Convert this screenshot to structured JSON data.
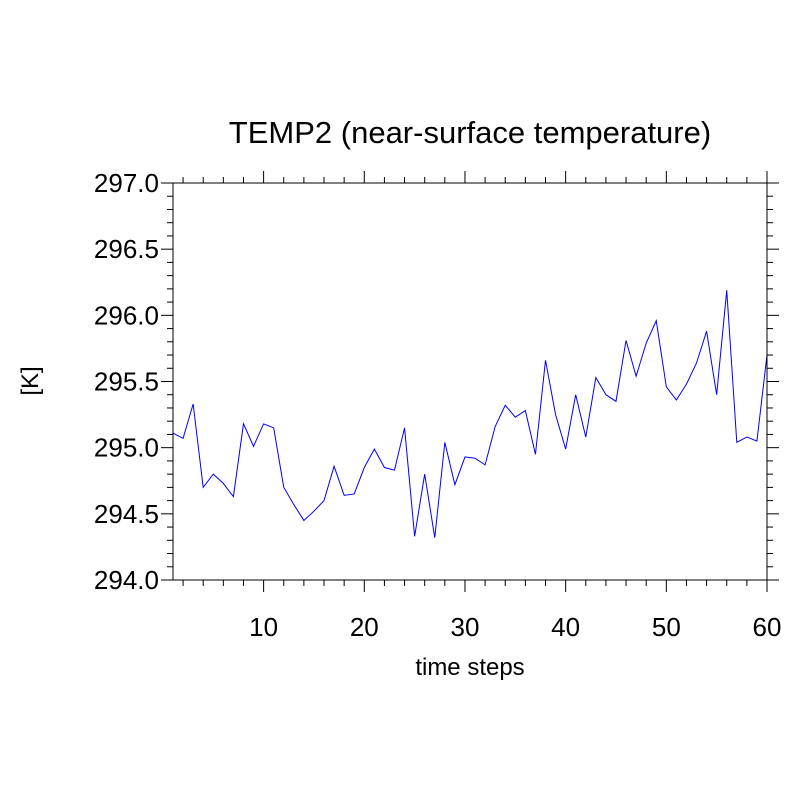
{
  "chart_data": {
    "type": "line",
    "title": "TEMP2 (near-surface temperature)",
    "xlabel": "time steps",
    "ylabel": "[K]",
    "xlim": [
      1,
      60
    ],
    "ylim": [
      294.0,
      297.0
    ],
    "x_ticks": [
      10,
      20,
      30,
      40,
      50,
      60
    ],
    "x_tick_labels": [
      "10",
      "20",
      "30",
      "40",
      "50",
      "60"
    ],
    "y_ticks": [
      294.0,
      294.5,
      295.0,
      295.5,
      296.0,
      296.5,
      297.0
    ],
    "y_tick_labels": [
      "294.0",
      "294.5",
      "295.0",
      "295.5",
      "296.0",
      "296.5",
      "297.0"
    ],
    "grid": false,
    "line_color": "#0000ff",
    "series": [
      {
        "x": [
          1,
          2,
          3,
          4,
          5,
          6,
          7,
          8,
          9,
          10,
          11,
          12,
          13,
          14,
          15,
          16,
          17,
          18,
          19,
          20,
          21,
          22,
          23,
          24,
          25,
          26,
          27,
          28,
          29,
          30,
          31,
          32,
          33,
          34,
          35,
          36,
          37,
          38,
          39,
          40,
          41,
          42,
          43,
          44,
          45,
          46,
          47,
          48,
          49,
          50,
          51,
          52,
          53,
          54,
          55,
          56,
          57,
          58,
          59,
          60
        ],
        "values": [
          295.11,
          295.07,
          295.33,
          294.7,
          294.8,
          294.73,
          294.63,
          295.18,
          295.01,
          295.18,
          295.15,
          294.7,
          294.57,
          294.45,
          294.52,
          294.6,
          294.86,
          294.64,
          294.65,
          294.85,
          294.99,
          294.85,
          294.83,
          295.15,
          294.33,
          294.8,
          294.32,
          295.04,
          294.72,
          294.93,
          294.92,
          294.87,
          295.16,
          295.32,
          295.23,
          295.28,
          294.95,
          295.66,
          295.25,
          294.99,
          295.4,
          295.08,
          295.53,
          295.4,
          295.35,
          295.81,
          295.54,
          295.79,
          295.96,
          295.46,
          295.36,
          295.48,
          295.64,
          295.88,
          295.4,
          296.19,
          295.04,
          295.08,
          295.05,
          295.7
        ]
      }
    ]
  }
}
